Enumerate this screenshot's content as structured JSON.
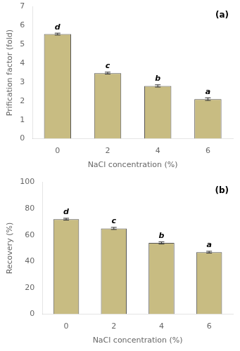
{
  "chart_data": [
    {
      "type": "bar",
      "categories": [
        "0",
        "2",
        "4",
        "6"
      ],
      "values": [
        5.55,
        3.48,
        2.8,
        2.1
      ],
      "errors": [
        0.05,
        0.05,
        0.06,
        0.07
      ],
      "letters": [
        "d",
        "c",
        "b",
        "a"
      ],
      "ylabel": "Prification factor (fold)",
      "xlabel": "NaCl concentration (%)",
      "ylim": [
        0,
        7
      ],
      "yticks": [
        0,
        1,
        2,
        3,
        4,
        5,
        6,
        7
      ],
      "annotation": "(a)",
      "color": "#c8bc82",
      "grid": false
    },
    {
      "type": "bar",
      "categories": [
        "0",
        "2",
        "4",
        "6"
      ],
      "values": [
        72.0,
        65.0,
        54.0,
        47.0
      ],
      "errors": [
        0.7,
        0.8,
        0.8,
        0.7
      ],
      "letters": [
        "d",
        "c",
        "b",
        "a"
      ],
      "ylabel": "Recovery (%)",
      "xlabel": "NaCl concentration (%)",
      "ylim": [
        0,
        100
      ],
      "yticks": [
        0,
        20,
        40,
        60,
        80,
        100
      ],
      "annotation": "(b)",
      "color": "#c8bc82",
      "grid": false
    }
  ]
}
